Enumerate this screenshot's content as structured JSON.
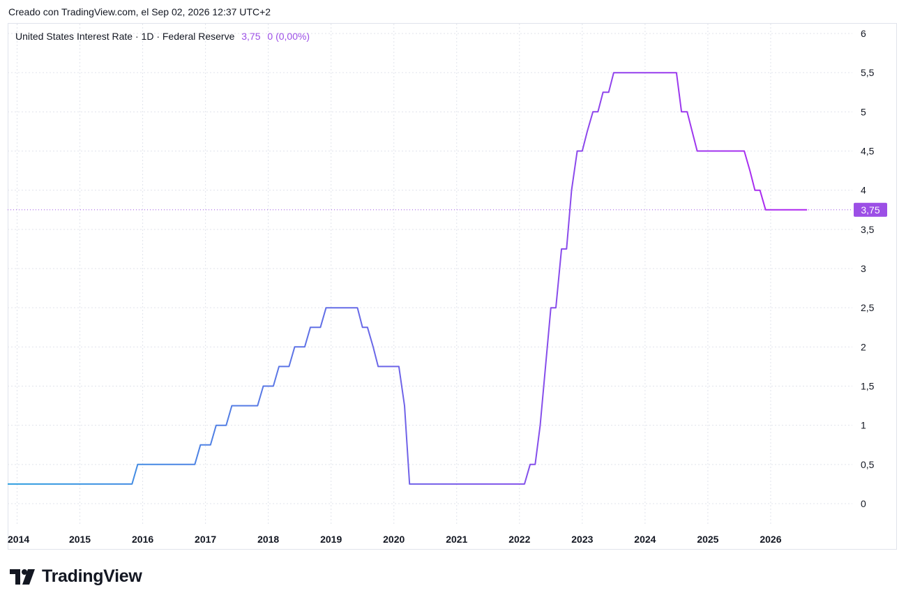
{
  "caption": "Creado con TradingView.com, el Sep 02, 2026 12:37 UTC+2",
  "legend": {
    "symbol": "United States Interest Rate · 1D · Federal Reserve",
    "value": "3,75",
    "change": "0 (0,00%)"
  },
  "brand": {
    "name": "TradingView",
    "icon": "tradingview-logo-icon"
  },
  "colors": {
    "line_start": "#2e9fe0",
    "line_end": "#b026f0",
    "price_tag": "#9c4fe6",
    "grid": "#e0e3eb"
  },
  "chart_data": {
    "type": "line",
    "title": "United States Interest Rate · 1D · Federal Reserve",
    "xlabel": "",
    "ylabel": "",
    "xlim": [
      2013.85,
      2027.3
    ],
    "ylim": [
      0,
      6
    ],
    "x_ticks": [
      "2014",
      "2015",
      "2016",
      "2017",
      "2018",
      "2019",
      "2020",
      "2021",
      "2022",
      "2023",
      "2024",
      "2025",
      "2026"
    ],
    "y_ticks": [
      "0",
      "0,5",
      "1",
      "1,5",
      "2",
      "2,5",
      "3",
      "3,5",
      "4",
      "4,5",
      "5",
      "5,5",
      "6"
    ],
    "last_price_label": "3,75",
    "grid": true,
    "series": [
      {
        "x": [
          2013.85,
          2015.83,
          2015.92,
          2016.83,
          2016.92,
          2017.08,
          2017.17,
          2017.33,
          2017.42,
          2017.83,
          2017.92,
          2018.08,
          2018.17,
          2018.33,
          2018.42,
          2018.58,
          2018.67,
          2018.83,
          2018.92,
          2019.42,
          2019.5,
          2019.58,
          2019.67,
          2019.75,
          2020.08,
          2020.17,
          2020.25,
          2022.08,
          2022.17,
          2022.25,
          2022.33,
          2022.5,
          2022.58,
          2022.67,
          2022.75,
          2022.83,
          2022.92,
          2023.0,
          2023.08,
          2023.17,
          2023.25,
          2023.33,
          2023.42,
          2023.5,
          2023.58,
          2024.5,
          2024.58,
          2024.67,
          2024.75,
          2024.83,
          2024.92,
          2025.58,
          2025.67,
          2025.75,
          2025.83,
          2025.92,
          2026.58
        ],
        "y": [
          0.25,
          0.25,
          0.5,
          0.5,
          0.75,
          0.75,
          1.0,
          1.0,
          1.25,
          1.25,
          1.5,
          1.5,
          1.75,
          1.75,
          2.0,
          2.0,
          2.25,
          2.25,
          2.5,
          2.5,
          2.25,
          2.25,
          2.0,
          1.75,
          1.75,
          1.25,
          0.25,
          0.25,
          0.5,
          0.5,
          1.0,
          2.5,
          2.5,
          3.25,
          3.25,
          4.0,
          4.5,
          4.5,
          4.75,
          5.0,
          5.0,
          5.25,
          5.25,
          5.5,
          5.5,
          5.5,
          5.0,
          5.0,
          4.75,
          4.5,
          4.5,
          4.5,
          4.25,
          4.0,
          4.0,
          3.75,
          3.75
        ]
      }
    ]
  }
}
